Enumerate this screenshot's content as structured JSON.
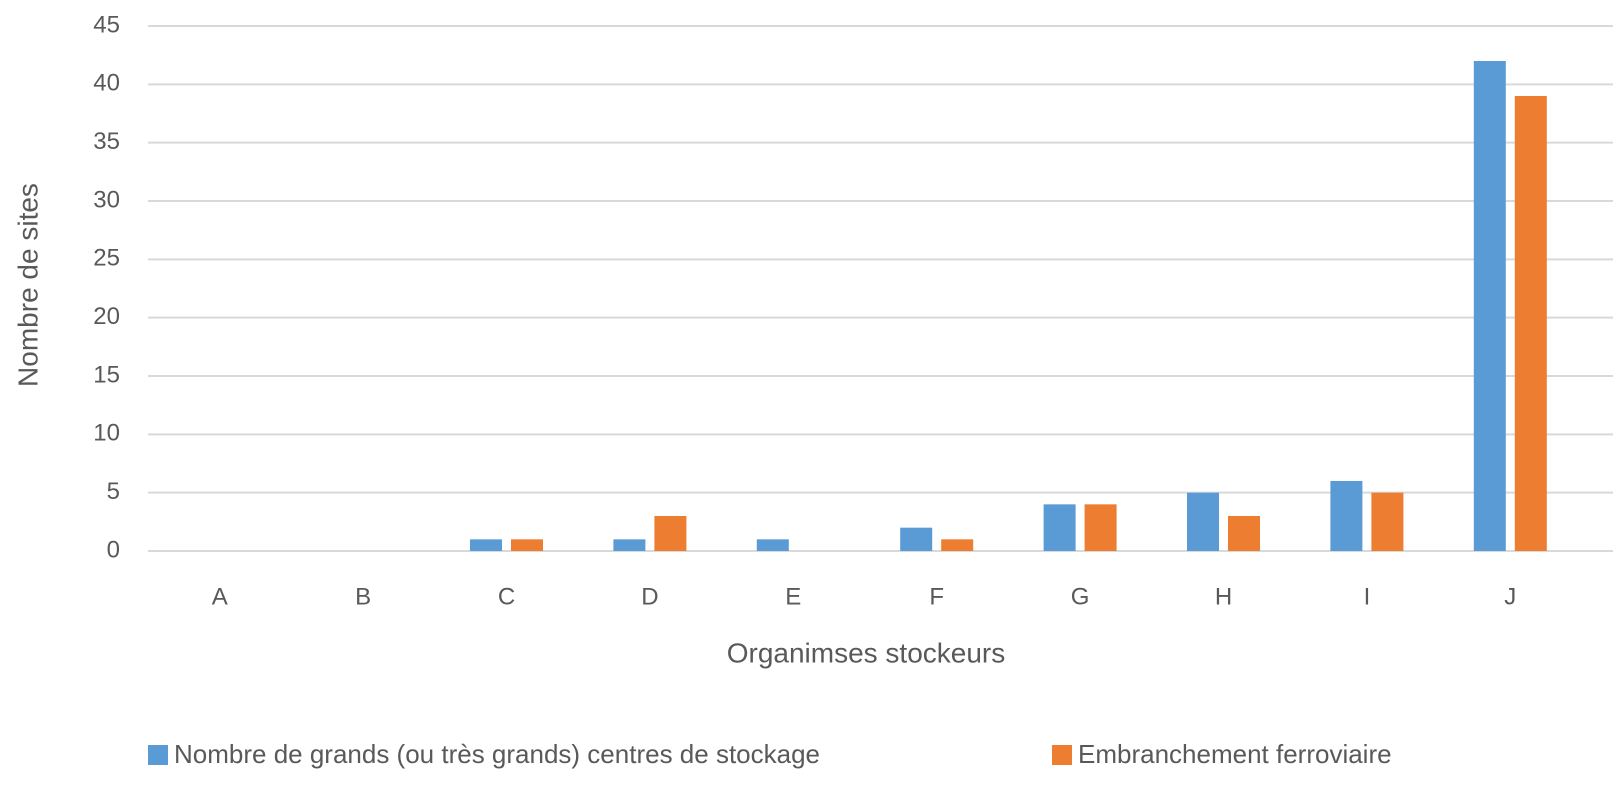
{
  "chart_data": {
    "type": "bar",
    "x_label": "Organimses stockeurs",
    "y_label": "Nombre de sites",
    "categories": [
      "A",
      "B",
      "C",
      "D",
      "E",
      "F",
      "G",
      "H",
      "I",
      "J"
    ],
    "series": [
      {
        "name": "Nombre de grands (ou très grands) centres de stockage",
        "color": "#5b9bd5",
        "values": [
          0,
          0,
          1,
          1,
          1,
          2,
          4,
          5,
          6,
          42
        ]
      },
      {
        "name": "Embranchement ferroviaire",
        "color": "#ed7d31",
        "values": [
          0,
          0,
          1,
          3,
          0,
          1,
          4,
          3,
          5,
          39
        ]
      }
    ],
    "ylim": [
      0,
      45
    ],
    "yticks": [
      0,
      5,
      10,
      15,
      20,
      25,
      30,
      35,
      40,
      45
    ],
    "grid": true
  }
}
